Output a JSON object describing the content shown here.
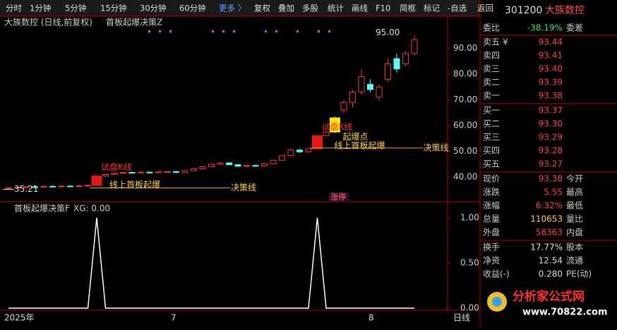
{
  "toolbar": {
    "tabs": [
      "分时",
      "1分钟",
      "5分钟",
      "15分钟",
      "30分钟",
      "60分钟",
      "更多 〉",
      "复权",
      "叠加",
      "多股",
      "统计",
      "画线",
      "F10",
      "简框",
      "标记",
      "-自选",
      "返回"
    ]
  },
  "quote": {
    "code": "301200",
    "name": "大族数控",
    "ratio_label": "委比",
    "ratio": "-38.19%",
    "diff_label": "委差",
    "asks": [
      {
        "label": "卖五",
        "mark": "¥",
        "price": "93.44"
      },
      {
        "label": "卖四",
        "price": "93.41"
      },
      {
        "label": "卖三",
        "price": "93.40"
      },
      {
        "label": "卖二",
        "price": "93.39"
      },
      {
        "label": "卖一",
        "price": "93.38"
      }
    ],
    "bids": [
      {
        "label": "买一",
        "price": "93.37"
      },
      {
        "label": "买二",
        "price": "93.30"
      },
      {
        "label": "买三",
        "price": "93.29"
      },
      {
        "label": "买四",
        "price": "93.28"
      },
      {
        "label": "买五",
        "price": "93.27"
      }
    ],
    "stats": [
      {
        "label": "现价",
        "value": "93.38",
        "label2": "今开"
      },
      {
        "label": "涨跌",
        "value": "5.55",
        "label2": "最高"
      },
      {
        "label": "涨幅",
        "value": "6.32%",
        "label2": "最低"
      },
      {
        "label": "总量",
        "value": "110653",
        "label2": "量比"
      },
      {
        "label": "外盘",
        "value": "58363",
        "label2": "内盘"
      },
      {
        "label": "换手",
        "value": "17.77%",
        "label2": "股本"
      },
      {
        "label": "净资",
        "value": "12.54",
        "label2": "流通"
      },
      {
        "label": "收益(-)",
        "value": "0.280",
        "label2": "PE(动)"
      }
    ]
  },
  "watermark": {
    "title": "分析家公式网",
    "url": "www.70822.com"
  },
  "chart_data": [
    {
      "type": "candlestick",
      "title": "大族数控 (日线,前复权)",
      "subtitle": "首板起爆决策Z",
      "open": [
        35.5,
        35.8,
        36,
        36.2,
        36.1,
        36.4,
        36.3,
        36.5,
        36.4,
        36.6,
        36.8,
        40.4,
        41,
        41.5,
        41.8,
        41.6,
        41.9,
        41.7,
        42,
        42.1,
        41.8,
        42.5,
        43.2,
        44,
        45,
        45.5,
        44.8,
        44.2,
        44.5,
        44.3,
        45.2,
        46.5,
        48.3,
        50.5,
        49.8,
        51,
        56.1,
        57.5,
        66,
        69,
        73,
        76,
        71,
        78,
        86,
        84,
        88
      ],
      "close": [
        35.8,
        36,
        36.2,
        36.1,
        36.4,
        36.3,
        36.5,
        36.4,
        36.6,
        36.8,
        40.4,
        41,
        41.5,
        41.8,
        41.6,
        41.9,
        41.7,
        42,
        42.1,
        41.8,
        42.5,
        43.2,
        44,
        45,
        45.5,
        44.8,
        44.2,
        44.5,
        44.3,
        45.2,
        46.5,
        48.3,
        50.5,
        49.8,
        51,
        56.1,
        57.5,
        63,
        69,
        73,
        79,
        74,
        75,
        84,
        82,
        88,
        93.38
      ],
      "high": [
        36.1,
        36.3,
        36.5,
        36.5,
        36.7,
        36.7,
        36.8,
        36.8,
        36.9,
        37.1,
        40.4,
        41.4,
        41.8,
        42.1,
        42.1,
        42.2,
        42.1,
        42.3,
        42.4,
        42.4,
        42.8,
        43.5,
        44.3,
        45.3,
        45.9,
        45.8,
        45.1,
        44.8,
        44.8,
        45.5,
        46.8,
        48.6,
        50.9,
        50.9,
        51.4,
        56.1,
        58.2,
        63.5,
        70,
        74,
        82,
        78,
        76,
        86,
        88,
        89,
        95
      ],
      "low": [
        35.21,
        35.6,
        35.8,
        35.9,
        35.9,
        36.1,
        36.1,
        36.2,
        36.2,
        36.4,
        36.6,
        40.1,
        40.7,
        41.2,
        41.3,
        41.4,
        41.5,
        41.5,
        41.7,
        41.6,
        41.6,
        42.2,
        42.9,
        43.8,
        44.7,
        44.6,
        44,
        43.9,
        44,
        44.1,
        45,
        46.3,
        48.1,
        49.4,
        49.6,
        50.8,
        55.9,
        57.2,
        65,
        67,
        72,
        73,
        69.5,
        77,
        80.5,
        83,
        87
      ],
      "up_color": "#ff3232",
      "down_color": "#54ffff",
      "highlight": [
        {
          "index": 10,
          "color": "#e81818"
        },
        {
          "index": 35,
          "color": "#e81818"
        },
        {
          "index": 37,
          "color": "#ffe600"
        }
      ],
      "high_label": {
        "value": 95,
        "label": "95.00"
      },
      "low_label": {
        "value": 35.21,
        "label": "35.21"
      },
      "signals": [
        {
          "index": 10,
          "note": "试盘K线",
          "breakout": "线上首板起爆",
          "line_label": "决策线",
          "line_value": 35.8
        },
        {
          "index": 35,
          "note": "试盘K线",
          "point": "起爆点",
          "breakout": "线上首板起爆",
          "line_label": "决策线",
          "line_value": 51.3
        }
      ],
      "badge": "涨停",
      "ylim": [
        31,
        100
      ],
      "yticks": [
        {
          "value": 90,
          "label": "90.00"
        },
        {
          "value": 80,
          "label": "80.00"
        },
        {
          "value": 70,
          "label": "70.00"
        },
        {
          "value": 60,
          "label": "60.00"
        },
        {
          "value": 50,
          "label": "50.00"
        },
        {
          "value": 40,
          "label": "40.00"
        }
      ],
      "x_labels": [
        "2025年",
        "7",
        "8",
        "日线"
      ]
    },
    {
      "type": "line",
      "title": "首板起爆决策F",
      "subtitle": "XG: 0.00",
      "color": "#ffffff",
      "values": [
        0,
        0,
        0,
        0,
        0,
        0,
        0,
        0,
        0,
        0,
        1,
        0,
        0,
        0,
        0,
        0,
        0,
        0,
        0,
        0,
        0,
        0,
        0,
        0,
        0,
        0,
        0,
        0,
        0,
        0,
        0,
        0,
        0,
        0,
        0,
        1,
        0,
        0,
        0,
        0,
        0,
        0,
        0,
        0,
        0,
        0,
        0
      ],
      "ylim": [
        0,
        1
      ],
      "yticks": [
        {
          "value": 1,
          "label": "1.00"
        },
        {
          "value": 0.5,
          "label": "0.50"
        },
        {
          "value": 0,
          "label": "0.00"
        }
      ]
    }
  ]
}
